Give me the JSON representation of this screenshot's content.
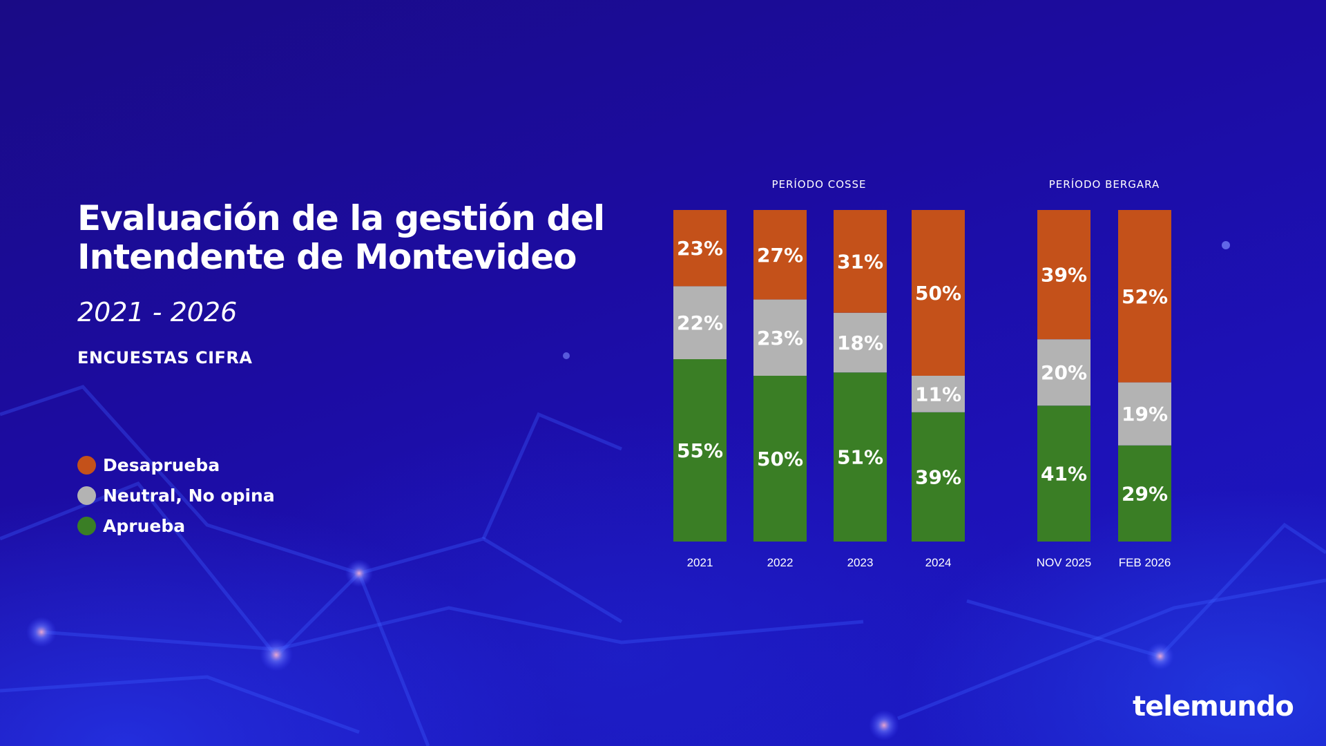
{
  "title_lines": [
    "Evaluación de la gestión del",
    "Intendente de Montevideo"
  ],
  "subtitle": "2021 - 2026",
  "source": "ENCUESTAS CIFRA",
  "logo": "telemundo",
  "legend": [
    {
      "label": "Desaprueba",
      "color": "#c4511a"
    },
    {
      "label": "Neutral, No opina",
      "color": "#b3b3b3"
    },
    {
      "label": "Aprueba",
      "color": "#3a7e25"
    }
  ],
  "chart_data": {
    "type": "bar",
    "stacked": true,
    "groups": [
      {
        "label": "PERÍODO COSSE",
        "categories": [
          "2021",
          "2022",
          "2023",
          "2024"
        ]
      },
      {
        "label": "PERÍODO BERGARA",
        "categories": [
          "NOV 2025",
          "FEB 2026"
        ]
      }
    ],
    "categories": [
      "2021",
      "2022",
      "2023",
      "2024",
      "NOV 2025",
      "FEB 2026"
    ],
    "series": [
      {
        "name": "Aprueba",
        "color": "#3a7e25",
        "values": [
          55,
          50,
          51,
          39,
          41,
          29
        ]
      },
      {
        "name": "Neutral, No opina",
        "color": "#b3b3b3",
        "values": [
          22,
          23,
          18,
          11,
          20,
          19
        ]
      },
      {
        "name": "Desaprueba",
        "color": "#c4511a",
        "values": [
          23,
          27,
          31,
          50,
          39,
          52
        ]
      }
    ],
    "value_suffix": "%",
    "ylim": [
      0,
      100
    ]
  }
}
